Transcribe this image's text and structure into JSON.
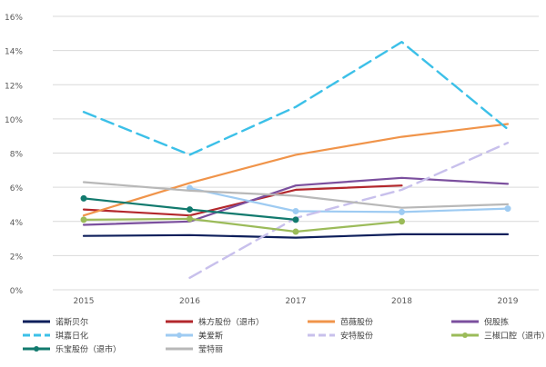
{
  "chart_data": {
    "type": "line",
    "categories": [
      "2015",
      "2016",
      "2017",
      "2018",
      "2019"
    ],
    "ylim": [
      0,
      16
    ],
    "y_ticks": [
      "0%",
      "2%",
      "4%",
      "6%",
      "8%",
      "10%",
      "12%",
      "14%",
      "16%"
    ],
    "grid": "horizontal",
    "legend_position": "bottom",
    "series": [
      {
        "name": "诺斯贝尔",
        "color": "#0e1f5b",
        "dash": "solid",
        "marker": false,
        "values": [
          3.15,
          3.2,
          3.05,
          3.25,
          3.25
        ]
      },
      {
        "name": "株方股份（退市）",
        "color": "#b3272c",
        "dash": "solid",
        "marker": false,
        "values": [
          4.7,
          4.35,
          5.85,
          6.1,
          null
        ]
      },
      {
        "name": "芭薇股份",
        "color": "#f0944a",
        "dash": "solid",
        "marker": false,
        "values": [
          4.35,
          6.25,
          7.9,
          8.95,
          9.7
        ]
      },
      {
        "name": "倪股拣",
        "color": "#7b4f9e",
        "dash": "solid",
        "marker": false,
        "values": [
          3.8,
          4.0,
          6.1,
          6.55,
          6.2
        ]
      },
      {
        "name": "琪嘉日化",
        "color": "#3cc0e8",
        "dash": "dashed",
        "marker": false,
        "values": [
          10.4,
          7.9,
          10.7,
          14.5,
          9.4
        ]
      },
      {
        "name": "美爱斯",
        "color": "#9ecbf2",
        "dash": "solid",
        "marker": true,
        "values": [
          null,
          5.95,
          4.6,
          4.55,
          4.75
        ]
      },
      {
        "name": "安特股份",
        "color": "#c8c0ec",
        "dash": "dashed",
        "marker": false,
        "values": [
          null,
          0.7,
          4.2,
          5.85,
          8.6
        ]
      },
      {
        "name": "三椒口腔（退市）",
        "color": "#9bbb59",
        "dash": "solid",
        "marker": true,
        "values": [
          4.1,
          4.15,
          3.4,
          4.0,
          null
        ]
      },
      {
        "name": "乐宝股份（退市）",
        "color": "#127a6e",
        "dash": "solid",
        "marker": true,
        "values": [
          5.35,
          4.7,
          4.1,
          null,
          null
        ]
      },
      {
        "name": "莹特丽",
        "color": "#b8b8b8",
        "dash": "solid",
        "marker": false,
        "values": [
          6.3,
          5.8,
          5.5,
          4.8,
          5.0
        ]
      }
    ]
  }
}
